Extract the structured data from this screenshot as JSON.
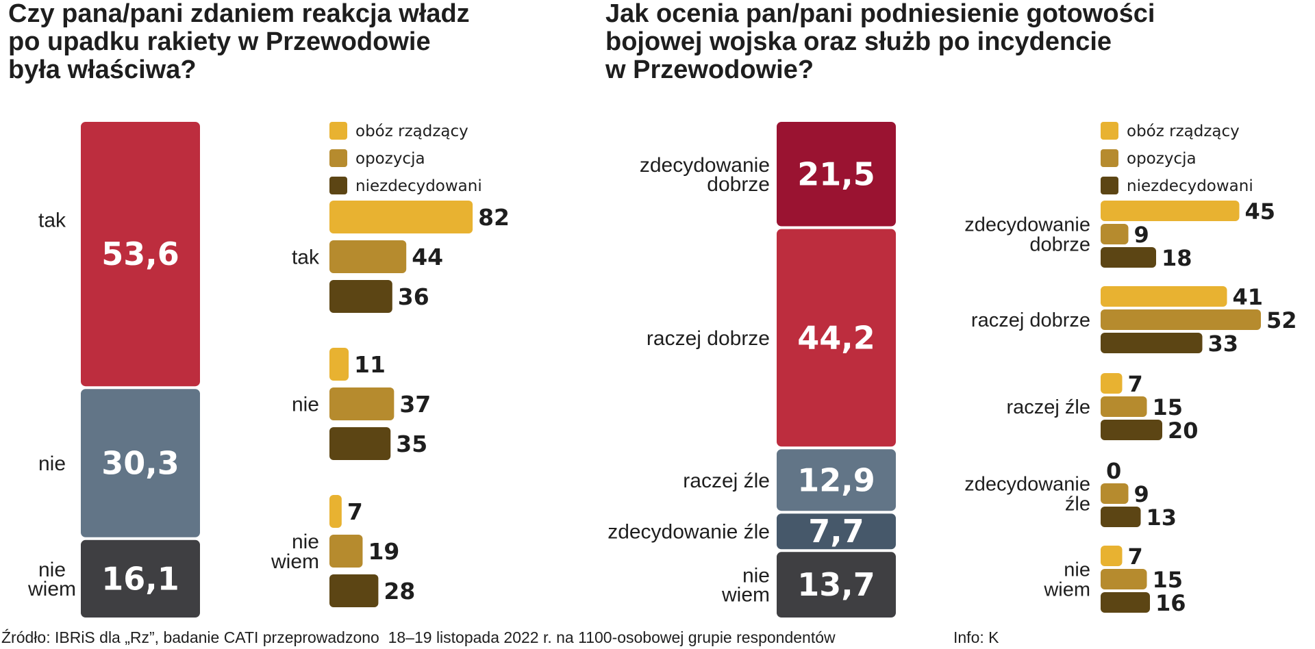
{
  "colors": {
    "camp_ruling": "#e8b231",
    "camp_opposition": "#b68b2e",
    "camp_undecided": "#5c4514",
    "tak": "#bd2d3e",
    "nie": "#627587",
    "nie_wiem": "#3f3f42",
    "zdecydowanie_dobrze": "#9a1331",
    "raczej_dobrze": "#bd2d3e",
    "raczej_zle": "#627587",
    "zdecydowanie_zle": "#46586a",
    "r_nie_wiem": "#3f3f42"
  },
  "footer": {
    "source": "Źródło: IBRiS dla „Rz”, badanie CATI przeprowadzono  18–19 listopada 2022 r. na 1100-osobowej grupie respondentów",
    "credit": "Info: K"
  },
  "chart_data": [
    {
      "type": "bar",
      "id": "stacked-left",
      "title": "Czy pana/pani zdaniem reakcja władz po  upadku rakiety w Przewodowie była właściwa?",
      "title_lines": [
        "Czy pana/pani zdaniem reakcja władz",
        "po  upadku rakiety w Przewodowie",
        "była właściwa?"
      ],
      "stacked": true,
      "unit": "%",
      "categories": [
        [
          "tak"
        ],
        [
          "nie"
        ],
        [
          "nie",
          "wiem"
        ]
      ],
      "values": [
        53.6,
        30.3,
        16.1
      ],
      "value_labels": [
        "53,6",
        "30,3",
        "16,1"
      ],
      "colors": [
        "#bd2d3e",
        "#627587",
        "#3f3f42"
      ]
    },
    {
      "type": "bar",
      "id": "grouped-left",
      "orientation": "horizontal",
      "legend": [
        "obóz rządzący",
        "opozycja",
        "niezdecydowani"
      ],
      "legend_colors": [
        "#e8b231",
        "#b68b2e",
        "#5c4514"
      ],
      "categories": [
        [
          "tak"
        ],
        [
          "nie"
        ],
        [
          "nie",
          "wiem"
        ]
      ],
      "series": [
        {
          "name": "obóz rządzący",
          "values": [
            82,
            11,
            7
          ]
        },
        {
          "name": "opozycja",
          "values": [
            44,
            37,
            19
          ]
        },
        {
          "name": "niezdecydowani",
          "values": [
            36,
            35,
            28
          ]
        }
      ]
    },
    {
      "type": "bar",
      "id": "stacked-right",
      "title": "Jak ocenia pan/pani podniesienie gotowości bojowej wojska oraz służb po incydencie w Przewodowie?",
      "title_lines": [
        "Jak ocenia pan/pani podniesienie gotowości",
        "bojowej wojska oraz służb po incydencie",
        "w Przewodowie?"
      ],
      "stacked": true,
      "unit": "%",
      "categories": [
        [
          "zdecydowanie",
          "dobrze"
        ],
        [
          "raczej dobrze"
        ],
        [
          "raczej źle"
        ],
        [
          "zdecydowanie źle"
        ],
        [
          "nie",
          "wiem"
        ]
      ],
      "values": [
        21.5,
        44.2,
        12.9,
        7.7,
        13.7
      ],
      "value_labels": [
        "21,5",
        "44,2",
        "12,9",
        "7,7",
        "13,7"
      ],
      "colors": [
        "#9a1331",
        "#bd2d3e",
        "#627587",
        "#46586a",
        "#3f3f42"
      ]
    },
    {
      "type": "bar",
      "id": "grouped-right",
      "orientation": "horizontal",
      "legend": [
        "obóz rządzący",
        "opozycja",
        "niezdecydowani"
      ],
      "legend_colors": [
        "#e8b231",
        "#b68b2e",
        "#5c4514"
      ],
      "categories": [
        [
          "zdecydowanie",
          "dobrze"
        ],
        [
          "raczej dobrze"
        ],
        [
          "raczej źle"
        ],
        [
          "zdecydowanie",
          "źle"
        ],
        [
          "nie",
          "wiem"
        ]
      ],
      "series": [
        {
          "name": "obóz rządzący",
          "values": [
            45,
            41,
            7,
            0,
            7
          ]
        },
        {
          "name": "opozycja",
          "values": [
            9,
            52,
            15,
            9,
            15
          ]
        },
        {
          "name": "niezdecydowani",
          "values": [
            18,
            33,
            20,
            13,
            16
          ]
        }
      ]
    }
  ]
}
